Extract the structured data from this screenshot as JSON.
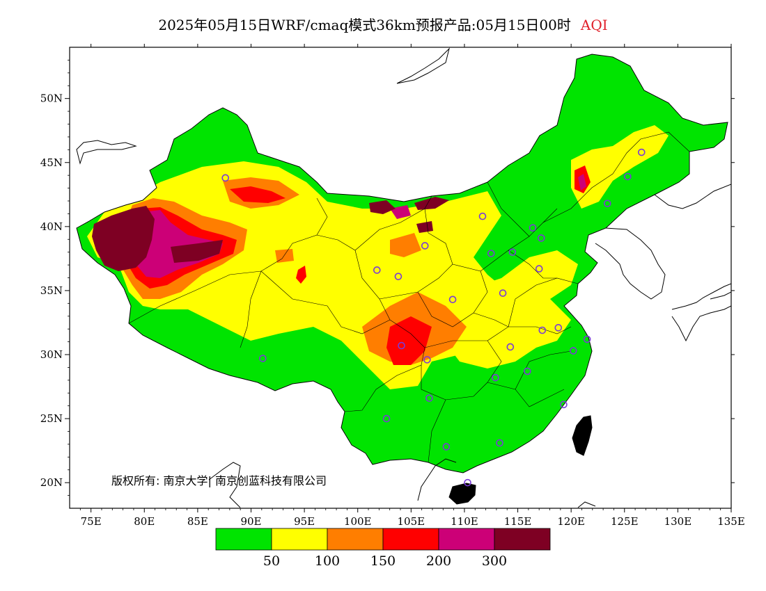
{
  "title": {
    "text": "2025年05月15日WRF/cmaq模式36km预报产品:05月15日00时",
    "variable": "AQI"
  },
  "axes": {
    "x_ticks": [
      "75E",
      "80E",
      "85E",
      "90E",
      "95E",
      "100E",
      "105E",
      "110E",
      "115E",
      "120E",
      "125E",
      "130E",
      "135E"
    ],
    "y_ticks": [
      "50N",
      "45N",
      "40N",
      "35N",
      "30N",
      "25N",
      "20N"
    ],
    "lon_range": [
      73,
      135
    ],
    "lat_range": [
      18,
      54
    ]
  },
  "copyright": "版权所有: 南京大学| 南京创蓝科技有限公司",
  "colorbar": {
    "colors": [
      "#00e400",
      "#ffff00",
      "#ff7e00",
      "#ff0000",
      "#cc0077",
      "#7e0023"
    ],
    "labels": [
      "50",
      "100",
      "150",
      "200",
      "300"
    ]
  },
  "stations": [
    [
      87.6,
      43.8
    ],
    [
      91.1,
      29.7
    ],
    [
      101.8,
      36.6
    ],
    [
      103.8,
      36.1
    ],
    [
      106.3,
      38.5
    ],
    [
      108.9,
      34.3
    ],
    [
      104.1,
      30.7
    ],
    [
      106.5,
      29.6
    ],
    [
      106.7,
      26.6
    ],
    [
      102.7,
      25.0
    ],
    [
      108.3,
      22.8
    ],
    [
      110.3,
      20.0
    ],
    [
      113.3,
      23.1
    ],
    [
      112.9,
      28.2
    ],
    [
      115.9,
      28.7
    ],
    [
      114.3,
      30.6
    ],
    [
      113.6,
      34.8
    ],
    [
      112.5,
      37.9
    ],
    [
      114.5,
      38.0
    ],
    [
      116.4,
      39.9
    ],
    [
      117.2,
      39.1
    ],
    [
      111.7,
      40.8
    ],
    [
      117.0,
      36.7
    ],
    [
      117.3,
      31.9
    ],
    [
      118.8,
      32.1
    ],
    [
      120.2,
      30.3
    ],
    [
      121.5,
      31.2
    ],
    [
      119.3,
      26.1
    ],
    [
      123.4,
      41.8
    ],
    [
      125.3,
      43.9
    ],
    [
      126.6,
      45.8
    ]
  ]
}
